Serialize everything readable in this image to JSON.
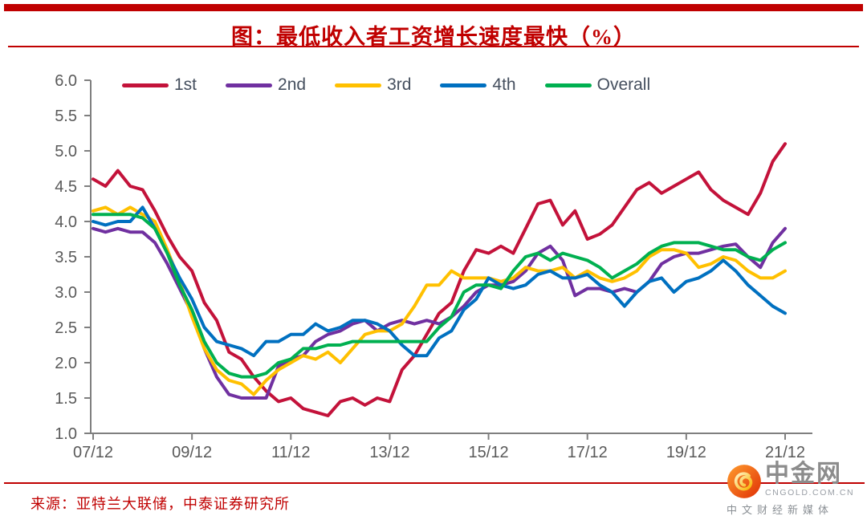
{
  "title": {
    "text": "图：最低收入者工资增长速度最快（%）"
  },
  "source": {
    "text": "来源：亚特兰大联储，中泰证券研究所"
  },
  "logo": {
    "name": "中金网",
    "domain": "CNGOLD.COM.CN",
    "tagline": "中文财经新媒体"
  },
  "colors": {
    "title_red": "#C00000",
    "axis_gray": "#7F7F7F",
    "tick_label_gray": "#595959",
    "legend_text": "#454F5E",
    "series_1st": "#C3123A",
    "series_2nd": "#7030A0",
    "series_3rd": "#FFC000",
    "series_4th": "#0070C0",
    "series_overall": "#00B050"
  },
  "chart_data": {
    "type": "line",
    "title": "图：最低收入者工资增长速度最快（%）",
    "xlabel": "",
    "ylabel": "",
    "ylim": [
      1.0,
      6.0
    ],
    "y_tick_labels": [
      "6.0",
      "5.5",
      "5.0",
      "4.5",
      "4.0",
      "3.5",
      "3.0",
      "2.5",
      "2.0",
      "1.5",
      "1.0"
    ],
    "x_tick_labels": [
      "07/12",
      "09/12",
      "11/12",
      "13/12",
      "15/12",
      "17/12",
      "19/12",
      "21/12"
    ],
    "grid": false,
    "legend_position": "top",
    "x": [
      "07/12",
      "08/03",
      "08/06",
      "08/09",
      "08/12",
      "09/03",
      "09/06",
      "09/09",
      "09/12",
      "10/03",
      "10/06",
      "10/09",
      "10/12",
      "11/03",
      "11/06",
      "11/09",
      "11/12",
      "12/03",
      "12/06",
      "12/09",
      "12/12",
      "13/03",
      "13/06",
      "13/09",
      "13/12",
      "14/03",
      "14/06",
      "14/09",
      "14/12",
      "15/03",
      "15/06",
      "15/09",
      "15/12",
      "16/03",
      "16/06",
      "16/09",
      "16/12",
      "17/03",
      "17/06",
      "17/09",
      "17/12",
      "18/03",
      "18/06",
      "18/09",
      "18/12",
      "19/03",
      "19/06",
      "19/09",
      "19/12",
      "20/03",
      "20/06",
      "20/09",
      "20/12",
      "21/03",
      "21/06",
      "21/09",
      "21/12"
    ],
    "series": [
      {
        "name": "1st",
        "color": "#C3123A",
        "values": [
          4.6,
          4.5,
          4.72,
          4.5,
          4.45,
          4.15,
          3.8,
          3.5,
          3.3,
          2.85,
          2.6,
          2.15,
          2.05,
          1.8,
          1.6,
          1.45,
          1.5,
          1.35,
          1.3,
          1.25,
          1.45,
          1.5,
          1.4,
          1.5,
          1.45,
          1.9,
          2.1,
          2.4,
          2.7,
          2.85,
          3.3,
          3.6,
          3.55,
          3.65,
          3.55,
          3.9,
          4.25,
          4.3,
          3.95,
          4.15,
          3.75,
          3.82,
          3.95,
          4.2,
          4.45,
          4.55,
          4.4,
          4.5,
          4.6,
          4.7,
          4.45,
          4.3,
          4.2,
          4.1,
          4.4,
          4.85,
          5.1
        ]
      },
      {
        "name": "2nd",
        "color": "#7030A0",
        "values": [
          3.9,
          3.85,
          3.9,
          3.85,
          3.85,
          3.7,
          3.4,
          3.05,
          2.7,
          2.2,
          1.8,
          1.55,
          1.5,
          1.5,
          1.5,
          1.95,
          2.05,
          2.1,
          2.3,
          2.4,
          2.45,
          2.55,
          2.6,
          2.45,
          2.55,
          2.6,
          2.55,
          2.6,
          2.55,
          2.65,
          2.8,
          3.0,
          3.1,
          3.1,
          3.15,
          3.3,
          3.55,
          3.65,
          3.45,
          2.95,
          3.05,
          3.05,
          3.0,
          3.05,
          3.0,
          3.15,
          3.4,
          3.5,
          3.55,
          3.55,
          3.6,
          3.65,
          3.68,
          3.5,
          3.35,
          3.7,
          3.9
        ]
      },
      {
        "name": "3rd",
        "color": "#FFC000",
        "values": [
          4.15,
          4.2,
          4.1,
          4.2,
          4.1,
          4.0,
          3.6,
          3.15,
          2.65,
          2.2,
          1.9,
          1.75,
          1.7,
          1.55,
          1.75,
          1.9,
          2.0,
          2.1,
          2.05,
          2.15,
          2.0,
          2.2,
          2.4,
          2.45,
          2.45,
          2.55,
          2.8,
          3.1,
          3.1,
          3.3,
          3.2,
          3.2,
          3.2,
          3.15,
          3.2,
          3.35,
          3.3,
          3.3,
          3.35,
          3.2,
          3.3,
          3.2,
          3.15,
          3.2,
          3.3,
          3.5,
          3.6,
          3.6,
          3.55,
          3.35,
          3.4,
          3.5,
          3.45,
          3.3,
          3.2,
          3.2,
          3.3
        ]
      },
      {
        "name": "4th",
        "color": "#0070C0",
        "values": [
          4.0,
          3.95,
          4.0,
          4.0,
          4.2,
          3.9,
          3.55,
          3.2,
          2.9,
          2.5,
          2.3,
          2.25,
          2.2,
          2.1,
          2.3,
          2.3,
          2.4,
          2.4,
          2.55,
          2.45,
          2.5,
          2.6,
          2.6,
          2.55,
          2.45,
          2.25,
          2.1,
          2.1,
          2.35,
          2.45,
          2.75,
          2.9,
          3.2,
          3.1,
          3.05,
          3.1,
          3.25,
          3.3,
          3.2,
          3.2,
          3.25,
          3.1,
          3.0,
          2.8,
          3.0,
          3.15,
          3.2,
          3.0,
          3.15,
          3.2,
          3.3,
          3.45,
          3.3,
          3.1,
          2.95,
          2.8,
          2.7
        ]
      },
      {
        "name": "Overall",
        "color": "#00B050",
        "values": [
          4.1,
          4.1,
          4.1,
          4.1,
          4.05,
          3.9,
          3.55,
          3.1,
          2.75,
          2.3,
          2.0,
          1.85,
          1.8,
          1.8,
          1.85,
          2.0,
          2.05,
          2.2,
          2.2,
          2.25,
          2.25,
          2.3,
          2.3,
          2.3,
          2.3,
          2.3,
          2.3,
          2.3,
          2.5,
          2.65,
          3.0,
          3.1,
          3.1,
          3.05,
          3.3,
          3.5,
          3.55,
          3.45,
          3.55,
          3.5,
          3.45,
          3.35,
          3.2,
          3.3,
          3.4,
          3.55,
          3.65,
          3.7,
          3.7,
          3.7,
          3.65,
          3.6,
          3.6,
          3.5,
          3.45,
          3.6,
          3.7
        ]
      }
    ]
  }
}
